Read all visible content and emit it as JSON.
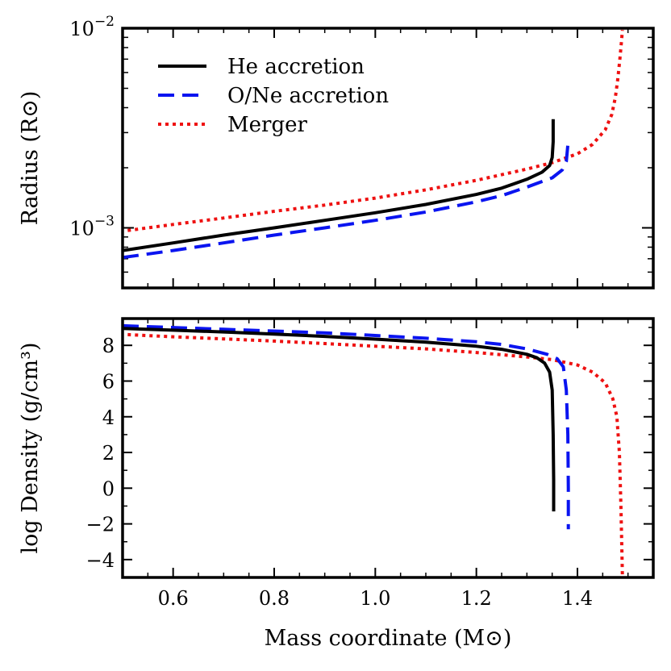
{
  "chart_data": [
    {
      "type": "line",
      "panel": "top",
      "ylabel": "Radius (R⊙)",
      "xlabel": "",
      "ylog": true,
      "ylim": [
        0.0005,
        0.01
      ],
      "xlim": [
        0.5,
        1.55
      ],
      "yticks": [
        {
          "value": 0.001,
          "base": "10",
          "exp": "−3"
        },
        {
          "value": 0.01,
          "base": "10",
          "exp": "−2"
        }
      ],
      "legend": {
        "placement": "top-left",
        "entries": [
          "He accretion",
          "O/Ne accretion",
          "Merger"
        ]
      },
      "series": [
        {
          "name": "He accretion",
          "color": "#000000",
          "dash": "solid",
          "x": [
            0.5,
            0.6,
            0.7,
            0.8,
            0.9,
            1.0,
            1.1,
            1.2,
            1.25,
            1.3,
            1.33,
            1.345,
            1.35,
            1.352,
            1.352
          ],
          "y": [
            0.00077,
            0.00084,
            0.00092,
            0.001,
            0.00109,
            0.00119,
            0.00131,
            0.00147,
            0.00158,
            0.00175,
            0.0019,
            0.00205,
            0.00225,
            0.0027,
            0.0035
          ]
        },
        {
          "name": "O/Ne accretion",
          "color": "#0a14f0",
          "dash": "dashed",
          "x": [
            0.5,
            0.6,
            0.7,
            0.8,
            0.9,
            1.0,
            1.1,
            1.2,
            1.25,
            1.3,
            1.35,
            1.37,
            1.378,
            1.381
          ],
          "y": [
            0.00071,
            0.00077,
            0.00084,
            0.00092,
            0.001,
            0.00109,
            0.0012,
            0.00135,
            0.00145,
            0.0016,
            0.00178,
            0.00195,
            0.00215,
            0.0026
          ]
        },
        {
          "name": "Merger",
          "color": "#ee1111",
          "dash": "dotted",
          "x": [
            0.51,
            0.6,
            0.7,
            0.8,
            0.9,
            1.0,
            1.1,
            1.2,
            1.3,
            1.35,
            1.4,
            1.43,
            1.455,
            1.468,
            1.475,
            1.48,
            1.484,
            1.487,
            1.489
          ],
          "y": [
            0.00097,
            0.00104,
            0.00112,
            0.00121,
            0.0013,
            0.00141,
            0.00155,
            0.00173,
            0.00197,
            0.00212,
            0.00235,
            0.00262,
            0.0031,
            0.0037,
            0.0045,
            0.0056,
            0.007,
            0.0085,
            0.0098
          ]
        }
      ]
    },
    {
      "type": "line",
      "panel": "bottom",
      "ylabel": "log Density (g/cm³)",
      "xlabel": "Mass coordinate (M⊙)",
      "ylim": [
        -5,
        9.5
      ],
      "xlim": [
        0.5,
        1.55
      ],
      "xticks": [
        0.6,
        0.8,
        1.0,
        1.2,
        1.4
      ],
      "xtick_labels": [
        "0.6",
        "0.8",
        "1.0",
        "1.2",
        "1.4"
      ],
      "yticks": [
        -4,
        -2,
        0,
        2,
        4,
        6,
        8
      ],
      "ytick_labels": [
        "−4",
        "−2",
        "0",
        "2",
        "4",
        "6",
        "8"
      ],
      "series": [
        {
          "name": "He accretion",
          "color": "#000000",
          "dash": "solid",
          "x": [
            0.5,
            0.6,
            0.7,
            0.8,
            0.9,
            1.0,
            1.1,
            1.2,
            1.25,
            1.3,
            1.32,
            1.335,
            1.345,
            1.35,
            1.352,
            1.353,
            1.353
          ],
          "y": [
            8.95,
            8.85,
            8.75,
            8.63,
            8.5,
            8.35,
            8.18,
            7.95,
            7.78,
            7.5,
            7.3,
            7.0,
            6.5,
            5.5,
            3.0,
            0.5,
            -1.3
          ]
        },
        {
          "name": "O/Ne accretion",
          "color": "#0a14f0",
          "dash": "dashed",
          "x": [
            0.5,
            0.6,
            0.7,
            0.8,
            0.9,
            1.0,
            1.1,
            1.2,
            1.25,
            1.3,
            1.34,
            1.36,
            1.372,
            1.378,
            1.381,
            1.382,
            1.382
          ],
          "y": [
            9.1,
            9.0,
            8.9,
            8.8,
            8.7,
            8.55,
            8.4,
            8.2,
            8.05,
            7.8,
            7.5,
            7.25,
            6.8,
            5.5,
            3.0,
            0.0,
            -2.3
          ]
        },
        {
          "name": "Merger",
          "color": "#ee1111",
          "dash": "dotted",
          "x": [
            0.51,
            0.6,
            0.7,
            0.8,
            0.9,
            1.0,
            1.1,
            1.2,
            1.3,
            1.35,
            1.4,
            1.43,
            1.455,
            1.47,
            1.478,
            1.483,
            1.486,
            1.488,
            1.489
          ],
          "y": [
            8.6,
            8.48,
            8.36,
            8.24,
            8.1,
            7.95,
            7.8,
            7.6,
            7.35,
            7.2,
            6.9,
            6.5,
            5.9,
            5.0,
            4.0,
            2.0,
            -1.0,
            -3.5,
            -5.0
          ]
        }
      ]
    }
  ]
}
